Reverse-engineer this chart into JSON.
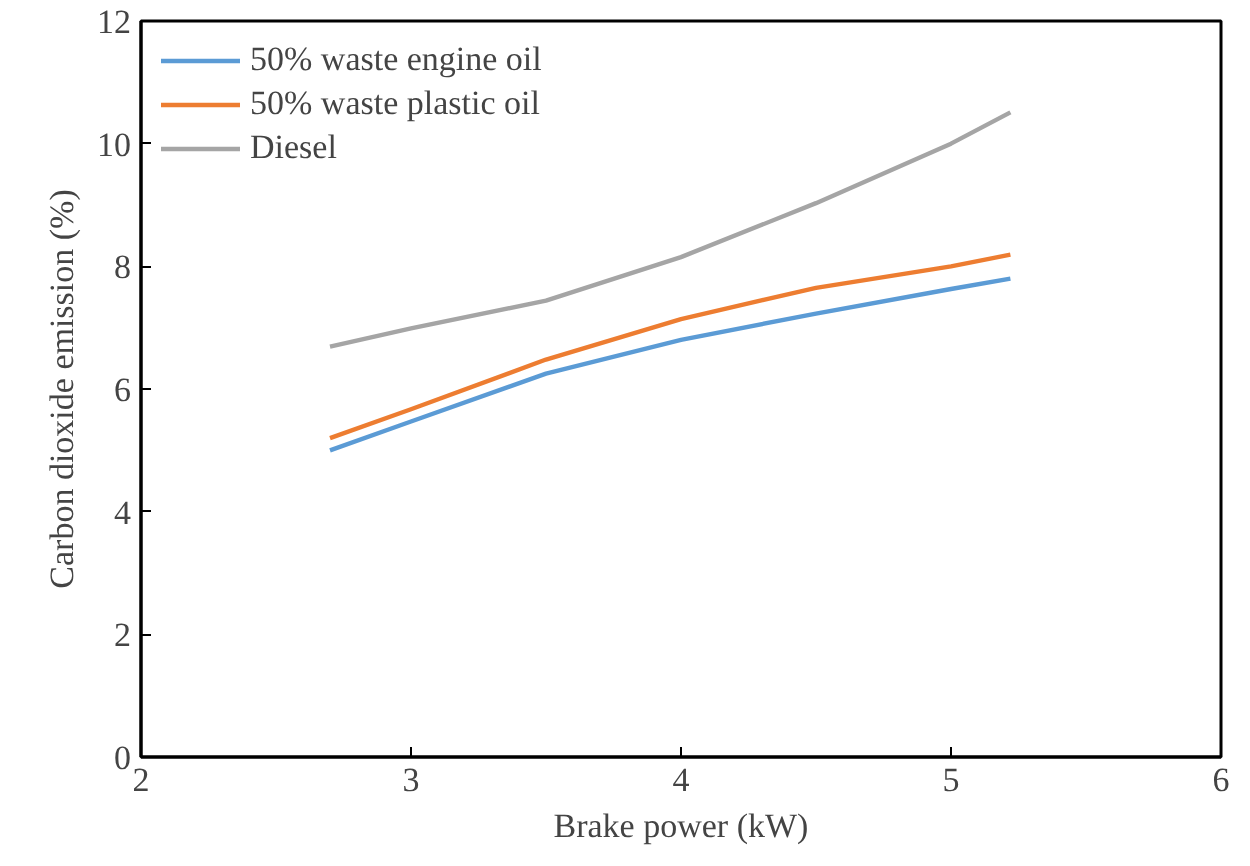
{
  "chart_data": {
    "type": "line",
    "xlabel": "Brake power (kW)",
    "ylabel": "Carbon dioxide emission (%)",
    "xlim": [
      2,
      6
    ],
    "ylim": [
      0,
      12
    ],
    "xticks": [
      2,
      3,
      4,
      5,
      6
    ],
    "yticks": [
      0,
      2,
      4,
      6,
      8,
      10,
      12
    ],
    "grid": false,
    "legend": "top left",
    "line_style": "solid",
    "marker": "none",
    "series": [
      {
        "name": "50% waste engine oil",
        "color": "#5b9bd5",
        "x": [
          2.7,
          3.0,
          3.5,
          4.0,
          4.5,
          5.0,
          5.22
        ],
        "values": [
          5.0,
          5.47,
          6.25,
          6.8,
          7.23,
          7.63,
          7.8
        ]
      },
      {
        "name": "50% waste plastic oil",
        "color": "#ed7d31",
        "x": [
          2.7,
          3.0,
          3.5,
          4.0,
          4.5,
          5.0,
          5.22
        ],
        "values": [
          5.2,
          5.67,
          6.48,
          7.14,
          7.65,
          8.0,
          8.19
        ]
      },
      {
        "name": "Diesel",
        "color": "#a5a5a5",
        "x": [
          2.7,
          3.0,
          3.5,
          4.0,
          4.5,
          5.0,
          5.22
        ],
        "values": [
          6.69,
          6.99,
          7.44,
          8.15,
          9.03,
          10.0,
          10.51
        ]
      }
    ]
  }
}
